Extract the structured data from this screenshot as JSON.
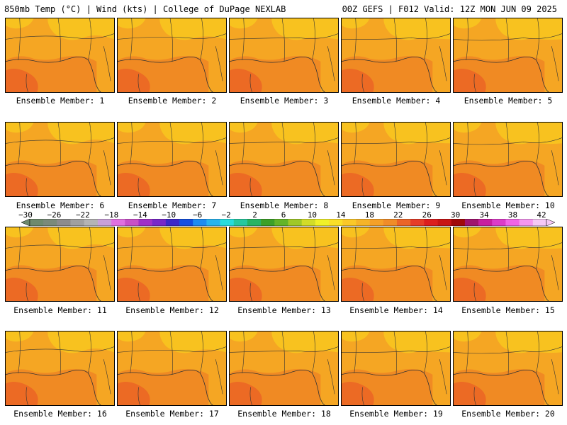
{
  "header": {
    "left": "850mb Temp (°C) | Wind (kts) | College of DuPage NEXLAB",
    "right": "00Z GEFS | F012 Valid: 12Z MON JUN 09 2025"
  },
  "panels": [
    {
      "label": "Ensemble Member: 1"
    },
    {
      "label": "Ensemble Member: 2"
    },
    {
      "label": "Ensemble Member: 3"
    },
    {
      "label": "Ensemble Member: 4"
    },
    {
      "label": "Ensemble Member: 5"
    },
    {
      "label": "Ensemble Member: 6"
    },
    {
      "label": "Ensemble Member: 7"
    },
    {
      "label": "Ensemble Member: 8"
    },
    {
      "label": "Ensemble Member: 9"
    },
    {
      "label": "Ensemble Member: 10"
    },
    {
      "label": "Ensemble Member: 11"
    },
    {
      "label": "Ensemble Member: 12"
    },
    {
      "label": "Ensemble Member: 13"
    },
    {
      "label": "Ensemble Member: 14"
    },
    {
      "label": "Ensemble Member: 15"
    },
    {
      "label": "Ensemble Member: 16"
    },
    {
      "label": "Ensemble Member: 17"
    },
    {
      "label": "Ensemble Member: 18"
    },
    {
      "label": "Ensemble Member: 19"
    },
    {
      "label": "Ensemble Member: 20"
    }
  ],
  "colorbar": {
    "ticks": [
      "−30",
      "−26",
      "−22",
      "−18",
      "−14",
      "−10",
      "−6",
      "−2",
      "2",
      "6",
      "10",
      "14",
      "18",
      "22",
      "26",
      "30",
      "34",
      "38",
      "42"
    ],
    "colors": [
      "#6e8a6e",
      "#7a8a7a",
      "#8c8c8c",
      "#a0a0a0",
      "#b4b4b4",
      "#c8a0d8",
      "#e070e0",
      "#c850c8",
      "#a030c8",
      "#7828c8",
      "#3c28c8",
      "#1450e0",
      "#1e8cf0",
      "#28b4f0",
      "#28dcdc",
      "#28c8a0",
      "#28b464",
      "#3ca028",
      "#64b428",
      "#a0c828",
      "#d2dc28",
      "#f0f028",
      "#fade28",
      "#fac828",
      "#f5b428",
      "#f5a028",
      "#f08c28",
      "#eb6428",
      "#e63c28",
      "#dc1e1e",
      "#c81414",
      "#a00a0a",
      "#a0146e",
      "#c81ea0",
      "#dc3cc8",
      "#f064e6",
      "#f596f0",
      "#f5c8f5"
    ]
  }
}
